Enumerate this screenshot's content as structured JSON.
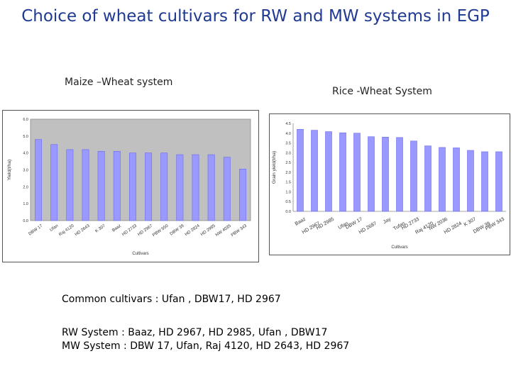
{
  "title": "Choice of wheat cultivars for RW and MW systems in EGP",
  "left_label": "Maize –Wheat  system",
  "right_label": "Rice -Wheat  System",
  "common": "Common  cultivars : Ufan , DBW17, HD 2967",
  "rw_line": "RW System : Baaz, HD 2967, HD 2985, Ufan , DBW17",
  "mw_line": "MW System : DBW 17, Ufan, Raj 4120, HD 2643, HD 2967",
  "chart_data": [
    {
      "type": "bar",
      "title": "Maize –Wheat  system",
      "xlabel": "Cultivars",
      "ylabel": "Yield(t/ha)",
      "ylim": [
        0,
        6
      ],
      "ytick_labels": [
        "0.0",
        "1.0",
        "2.0",
        "3.0",
        "4.0",
        "5.0",
        "6.0"
      ],
      "grid": false,
      "categories": [
        "DBW 17",
        "Ufan",
        "Raj 4120",
        "HD 2643",
        "K 307",
        "Baaz",
        "HD 2733",
        "HD 2967",
        "PBW 550",
        "DBW 39",
        "HD 2824",
        "HD 2985",
        "NW 4035",
        "PBW 343"
      ],
      "values": [
        4.8,
        4.5,
        4.2,
        4.2,
        4.1,
        4.1,
        4.0,
        4.0,
        4.0,
        3.9,
        3.9,
        3.9,
        3.75,
        3.05
      ],
      "bar_color": "#9999ff"
    },
    {
      "type": "bar",
      "title": "Rice -Wheat  System",
      "xlabel": "Cultivars",
      "ylabel": "Grain yield(t/ha)",
      "ylim": [
        0,
        4.5
      ],
      "ytick_labels": [
        "0.0",
        "0.5",
        "1.0",
        "1.5",
        "2.0",
        "2.5",
        "3.0",
        "3.5",
        "4.0",
        "4.5"
      ],
      "grid": false,
      "categories": [
        "Baaz",
        "HD 2967",
        "HD 2985",
        "Ufan",
        "DBW 17",
        "HD 2687",
        "Jay",
        "Tufan",
        "HD 2733",
        "Raj 4120",
        "NW 2036",
        "HD 2824",
        "K 307",
        "DBW 39",
        "PBW 343"
      ],
      "values": [
        4.2,
        4.15,
        4.08,
        4.02,
        4.0,
        3.82,
        3.8,
        3.78,
        3.6,
        3.35,
        3.27,
        3.25,
        3.12,
        3.05,
        3.05
      ],
      "bar_color": "#9999ff"
    }
  ]
}
